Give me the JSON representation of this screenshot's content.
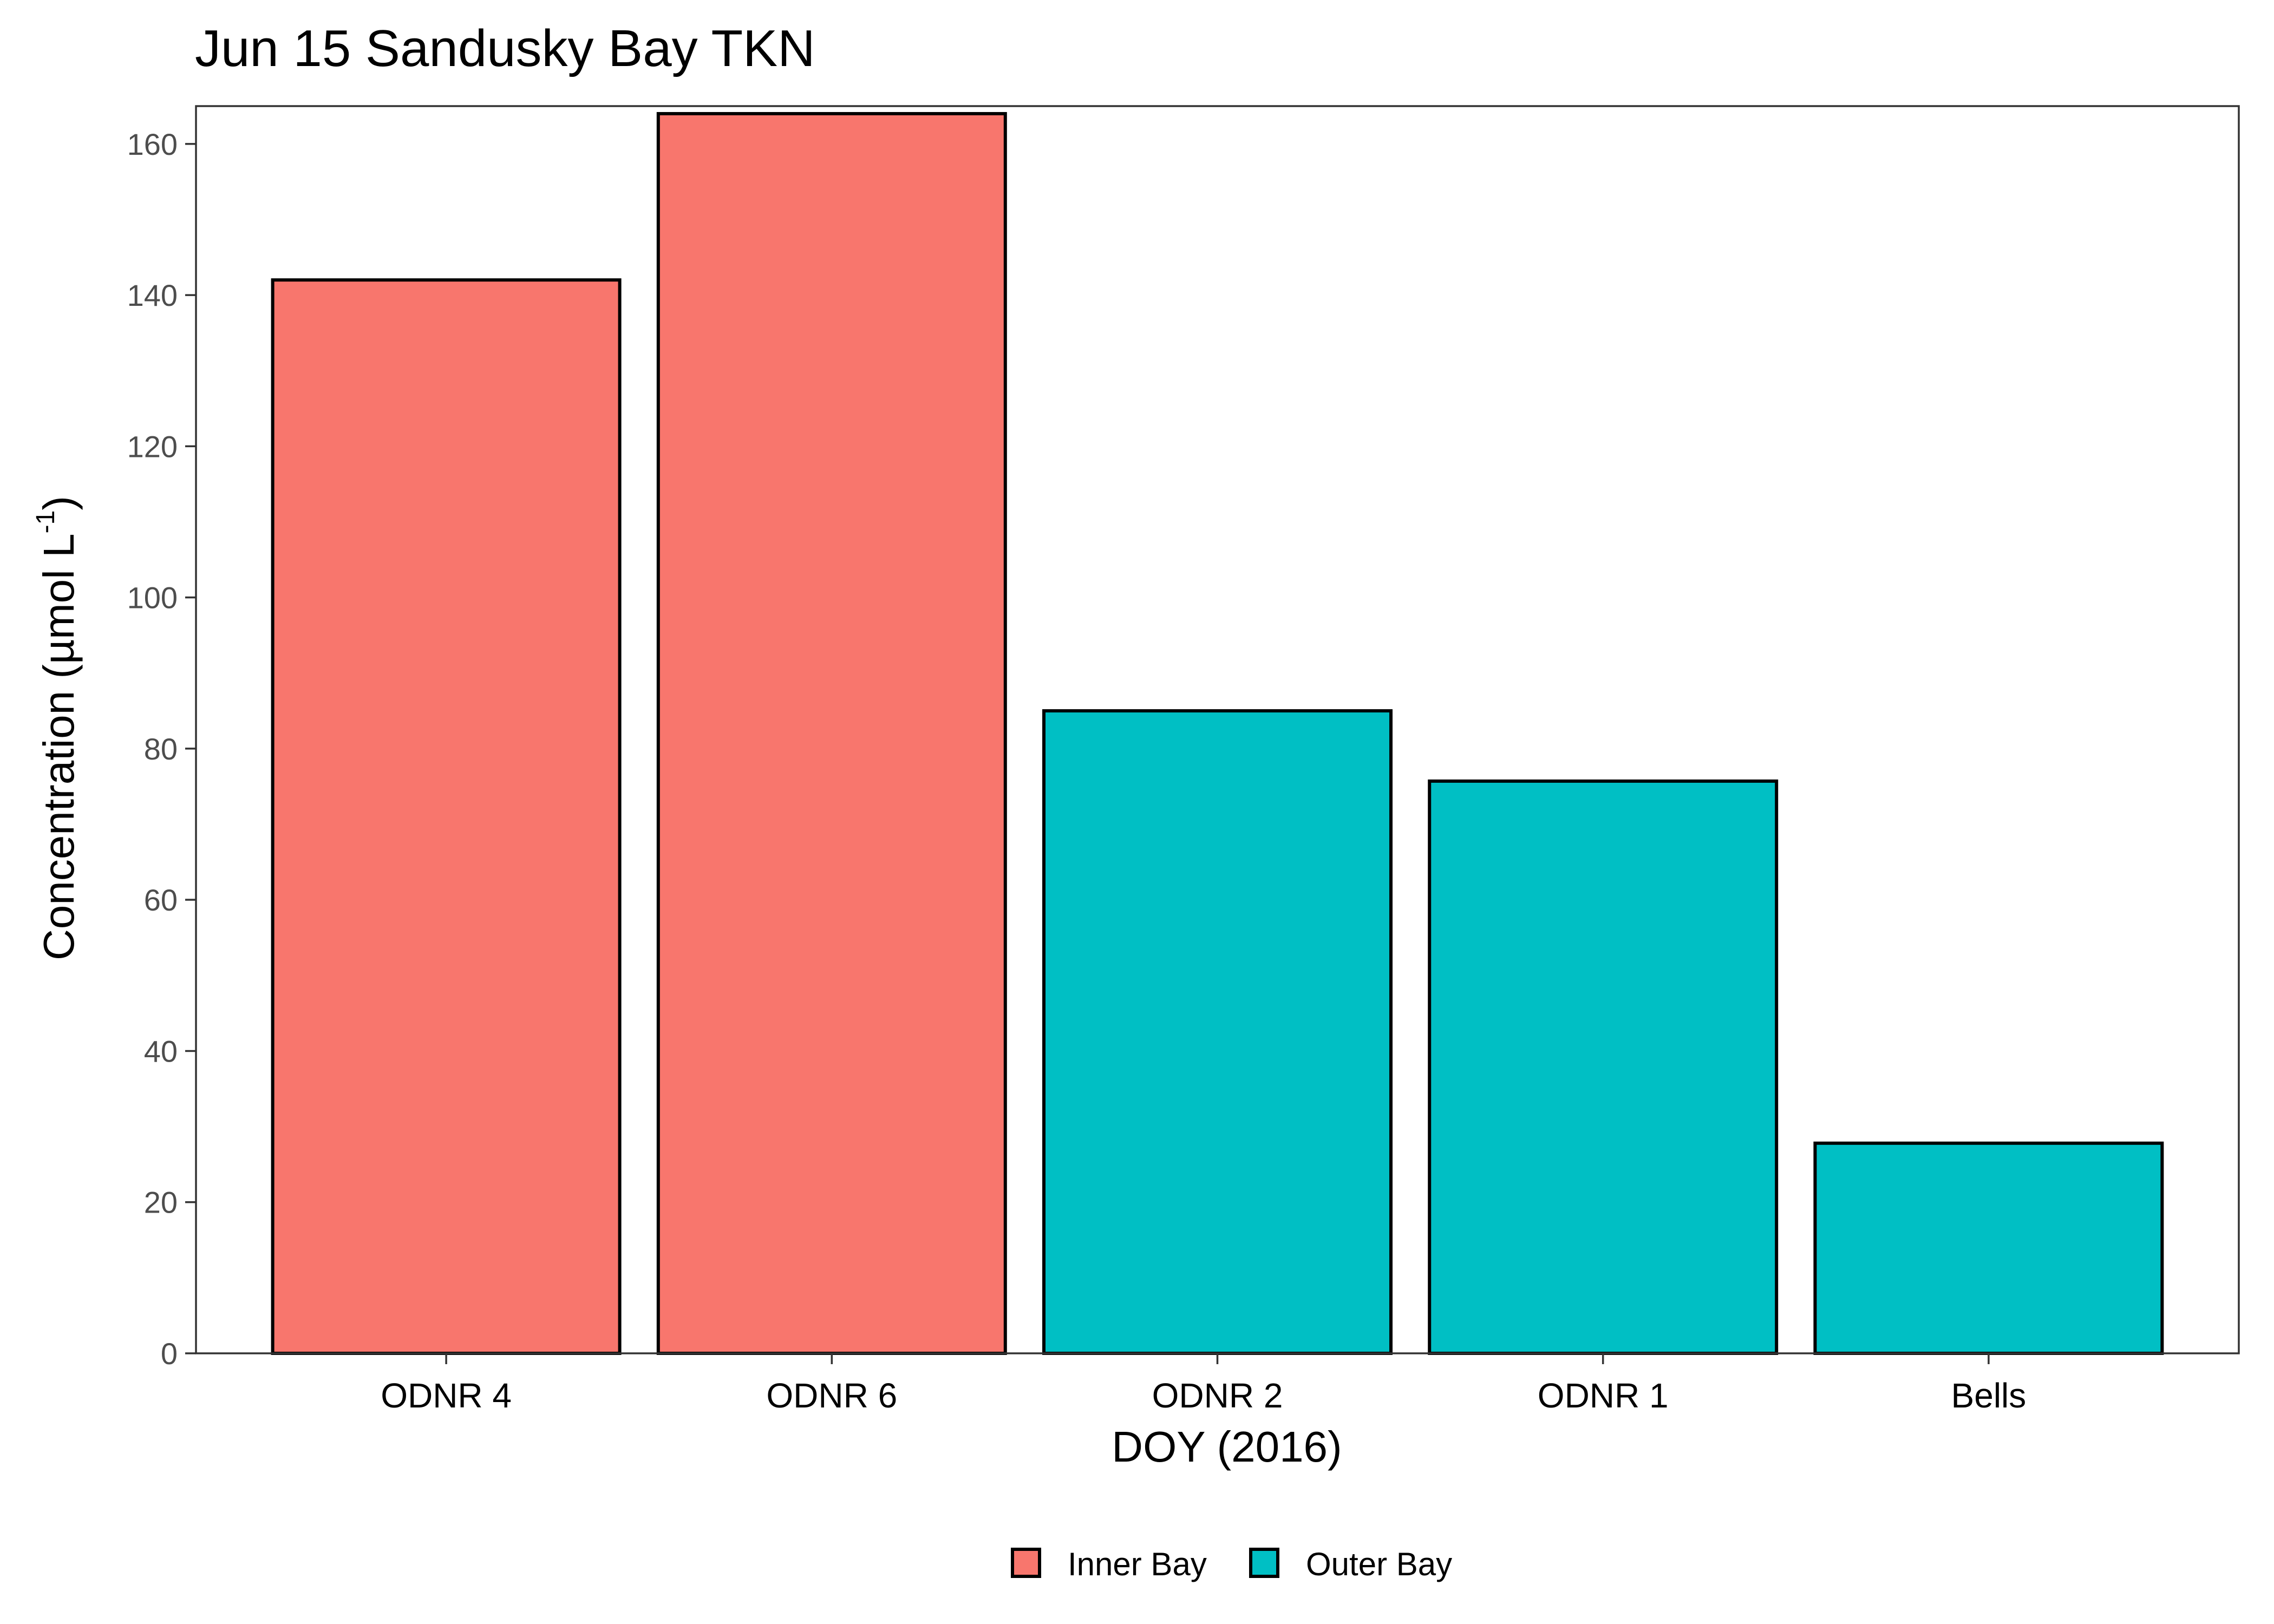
{
  "chart_data": {
    "type": "bar",
    "title": "Jun 15 Sandusky Bay TKN",
    "xlabel": "DOY (2016)",
    "ylabel": {
      "main": "Concentration (µmol L",
      "superscript": "-1",
      "close": ")"
    },
    "ylim": [
      0,
      165
    ],
    "yticks": [
      0,
      20,
      40,
      60,
      80,
      100,
      120,
      140,
      160
    ],
    "grid": false,
    "legend_position": "bottom",
    "categories": [
      "ODNR 4",
      "ODNR 6",
      "ODNR 2",
      "ODNR 1",
      "Bells"
    ],
    "values": [
      142,
      164,
      85,
      75.7,
      27.8
    ],
    "groups": [
      "Inner Bay",
      "Inner Bay",
      "Outer Bay",
      "Outer Bay",
      "Outer Bay"
    ],
    "legend": [
      {
        "label": "Inner Bay",
        "color": "#F8766D"
      },
      {
        "label": "Outer Bay",
        "color": "#00BFC4"
      }
    ]
  }
}
